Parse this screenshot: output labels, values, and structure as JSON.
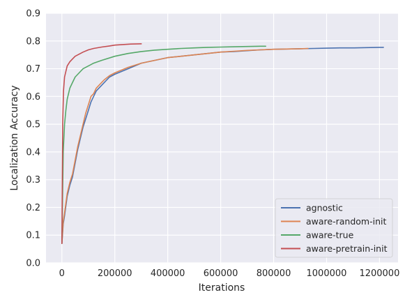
{
  "chart_data": {
    "type": "line",
    "title": "",
    "xlabel": "Iterations",
    "ylabel": "Localization Accuracy",
    "xlim": [
      -60000,
      1270000
    ],
    "ylim": [
      0.0,
      0.9
    ],
    "x_ticks": [
      0,
      200000,
      400000,
      600000,
      800000,
      1000000,
      1200000
    ],
    "x_tick_labels": [
      "0",
      "200000",
      "400000",
      "600000",
      "800000",
      "1000000",
      "1200000"
    ],
    "y_ticks": [
      0.0,
      0.1,
      0.2,
      0.3,
      0.4,
      0.5,
      0.6,
      0.7,
      0.8,
      0.9
    ],
    "y_tick_labels": [
      "0.0",
      "0.1",
      "0.2",
      "0.3",
      "0.4",
      "0.5",
      "0.6",
      "0.7",
      "0.8",
      "0.9"
    ],
    "grid": true,
    "background": "#eaeaf2",
    "legend_position": "lower-right",
    "series": [
      {
        "name": "agnostic",
        "color": "#4c72b0",
        "x": [
          0,
          5000,
          10000,
          20000,
          30000,
          40000,
          50000,
          60000,
          70000,
          80000,
          90000,
          100000,
          110000,
          120000,
          130000,
          140000,
          150000,
          160000,
          180000,
          200000,
          250000,
          300000,
          350000,
          400000,
          450000,
          500000,
          550000,
          600000,
          650000,
          700000,
          750000,
          800000,
          850000,
          900000,
          950000,
          1000000,
          1050000,
          1100000,
          1150000,
          1200000,
          1215000
        ],
        "y": [
          0.07,
          0.14,
          0.17,
          0.24,
          0.28,
          0.31,
          0.36,
          0.41,
          0.45,
          0.49,
          0.52,
          0.55,
          0.58,
          0.6,
          0.62,
          0.63,
          0.64,
          0.65,
          0.67,
          0.68,
          0.7,
          0.72,
          0.73,
          0.74,
          0.745,
          0.75,
          0.755,
          0.76,
          0.762,
          0.765,
          0.768,
          0.77,
          0.771,
          0.772,
          0.773,
          0.774,
          0.775,
          0.775,
          0.776,
          0.777,
          0.777
        ]
      },
      {
        "name": "aware-random-init",
        "color": "#dd8452",
        "x": [
          0,
          5000,
          10000,
          20000,
          30000,
          40000,
          50000,
          60000,
          70000,
          80000,
          90000,
          100000,
          110000,
          120000,
          130000,
          140000,
          150000,
          160000,
          180000,
          200000,
          250000,
          300000,
          350000,
          400000,
          450000,
          500000,
          550000,
          600000,
          650000,
          700000,
          750000,
          800000,
          850000,
          900000,
          930000
        ],
        "y": [
          0.07,
          0.15,
          0.18,
          0.25,
          0.29,
          0.32,
          0.37,
          0.42,
          0.46,
          0.5,
          0.54,
          0.57,
          0.6,
          0.61,
          0.63,
          0.64,
          0.65,
          0.66,
          0.675,
          0.685,
          0.705,
          0.72,
          0.73,
          0.74,
          0.745,
          0.75,
          0.755,
          0.76,
          0.763,
          0.766,
          0.768,
          0.77,
          0.771,
          0.772,
          0.773
        ]
      },
      {
        "name": "aware-true",
        "color": "#55a868",
        "x": [
          0,
          5000,
          10000,
          15000,
          20000,
          30000,
          40000,
          50000,
          60000,
          70000,
          80000,
          100000,
          120000,
          150000,
          200000,
          250000,
          300000,
          350000,
          400000,
          450000,
          500000,
          550000,
          600000,
          650000,
          700000,
          750000,
          770000
        ],
        "y": [
          0.07,
          0.4,
          0.5,
          0.55,
          0.59,
          0.63,
          0.65,
          0.67,
          0.68,
          0.69,
          0.7,
          0.71,
          0.72,
          0.73,
          0.745,
          0.755,
          0.762,
          0.767,
          0.77,
          0.773,
          0.775,
          0.777,
          0.778,
          0.779,
          0.78,
          0.781,
          0.781
        ]
      },
      {
        "name": "aware-pretrain-init",
        "color": "#c44e52",
        "x": [
          0,
          3000,
          6000,
          10000,
          15000,
          20000,
          30000,
          40000,
          50000,
          60000,
          70000,
          80000,
          100000,
          120000,
          150000,
          180000,
          200000,
          230000,
          260000,
          300000
        ],
        "y": [
          0.07,
          0.5,
          0.62,
          0.67,
          0.69,
          0.71,
          0.725,
          0.735,
          0.745,
          0.75,
          0.755,
          0.76,
          0.768,
          0.773,
          0.778,
          0.782,
          0.785,
          0.787,
          0.789,
          0.79
        ]
      }
    ]
  }
}
